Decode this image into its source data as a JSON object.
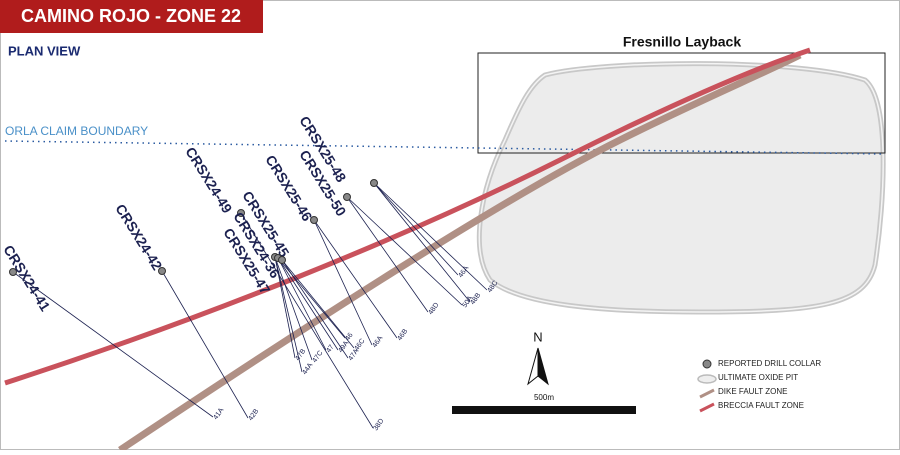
{
  "header": {
    "title": "CAMINO ROJO - ZONE 22",
    "subtitle": "PLAN VIEW"
  },
  "annotations": {
    "layback": "Fresnillo Layback",
    "claim_boundary": "ORLA CLAIM BOUNDARY"
  },
  "drill_holes": [
    {
      "name": "CRSX24-41",
      "traces": [
        "41A"
      ]
    },
    {
      "name": "CRSX24-42",
      "traces": [
        "42B"
      ]
    },
    {
      "name": "CRSX24-49",
      "traces": [
        "38D"
      ]
    },
    {
      "name": "CRSX25-45",
      "traces": [
        "47B",
        "44A",
        "47C"
      ]
    },
    {
      "name": "CRSX24-36",
      "traces": [
        "47",
        "46",
        "49A"
      ]
    },
    {
      "name": "CRSX25-47",
      "traces": [
        "47A",
        "46C"
      ]
    },
    {
      "name": "CRSX25-46",
      "traces": [
        "46A",
        "46B"
      ]
    },
    {
      "name": "CRSX25-50",
      "traces": [
        "48D",
        "50A"
      ]
    },
    {
      "name": "CRSX25-48",
      "traces": [
        "46A",
        "48B",
        "48C"
      ]
    }
  ],
  "north": "N",
  "scale_bar": "500m",
  "legend": [
    "REPORTED DRILL COLLAR",
    "ULTIMATE OXIDE PIT",
    "DIKE FAULT ZONE",
    "BRECCIA FAULT ZONE"
  ]
}
